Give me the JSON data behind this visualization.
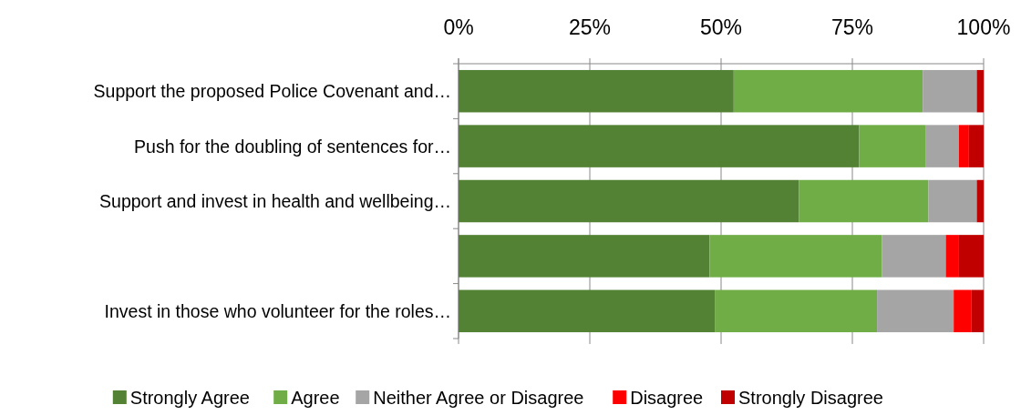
{
  "chart_data": {
    "type": "bar",
    "orientation": "horizontal",
    "stacked": true,
    "categories": [
      "Support the proposed Police Covenant and…",
      "Push for the doubling of sentences for…",
      "Support and invest in health and wellbeing…",
      null,
      "Invest in those who volunteer for the roles…"
    ],
    "series": [
      {
        "name": "Strongly Agree",
        "color": "#548235",
        "values": [
          52.4,
          76.3,
          64.8,
          47.8,
          48.8
        ]
      },
      {
        "name": "Agree",
        "color": "#70ad47",
        "values": [
          36.0,
          12.6,
          24.7,
          32.8,
          30.9
        ]
      },
      {
        "name": "Neither Agree or Disagree",
        "color": "#a5a5a5",
        "values": [
          10.3,
          6.4,
          9.2,
          12.2,
          14.6
        ]
      },
      {
        "name": "Disagree",
        "color": "#ff0000",
        "values": [
          0,
          1.9,
          0,
          2.5,
          3.4
        ]
      },
      {
        "name": "Strongly Disagree",
        "color": "#c00000",
        "values": [
          1.3,
          2.8,
          1.3,
          4.7,
          2.3
        ]
      }
    ],
    "xlim": [
      0,
      100
    ],
    "xticks": [
      {
        "value": 0,
        "label": "0%"
      },
      {
        "value": 25,
        "label": "25%"
      },
      {
        "value": 50,
        "label": "50%"
      },
      {
        "value": 75,
        "label": "75%"
      },
      {
        "value": 100,
        "label": "100%"
      }
    ],
    "grid": "x",
    "legend": "bottom"
  }
}
